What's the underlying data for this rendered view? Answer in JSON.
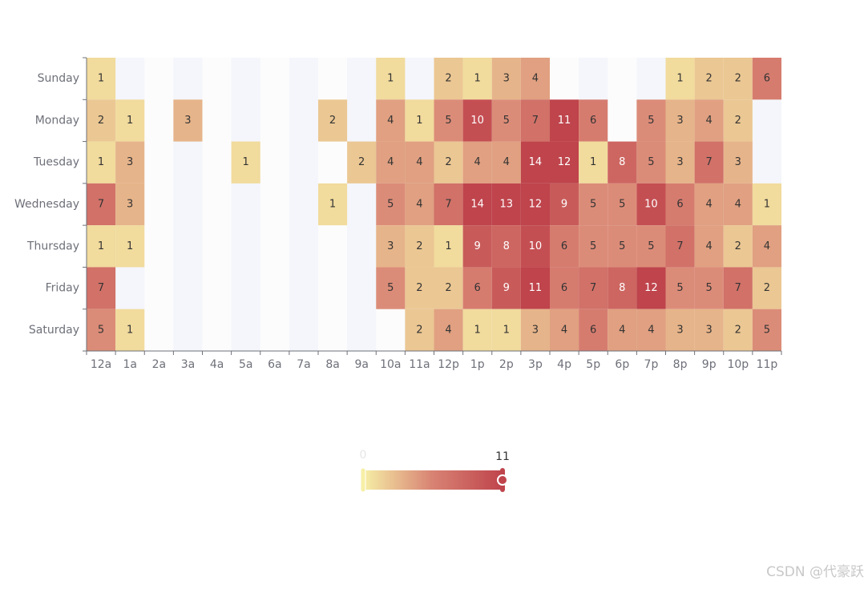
{
  "chart_data": {
    "type": "heatmap",
    "x_categories": [
      "12a",
      "1a",
      "2a",
      "3a",
      "4a",
      "5a",
      "6a",
      "7a",
      "8a",
      "9a",
      "10a",
      "11a",
      "12p",
      "1p",
      "2p",
      "3p",
      "4p",
      "5p",
      "6p",
      "7p",
      "8p",
      "9p",
      "10p",
      "11p"
    ],
    "y_categories": [
      "Sunday",
      "Monday",
      "Tuesday",
      "Wednesday",
      "Thursday",
      "Friday",
      "Saturday"
    ],
    "values": [
      [
        1,
        null,
        null,
        null,
        null,
        null,
        null,
        null,
        null,
        null,
        1,
        null,
        2,
        1,
        3,
        4,
        null,
        null,
        null,
        null,
        1,
        2,
        2,
        6
      ],
      [
        2,
        1,
        null,
        3,
        null,
        null,
        null,
        null,
        2,
        null,
        4,
        1,
        5,
        10,
        5,
        7,
        11,
        6,
        null,
        5,
        3,
        4,
        2,
        null
      ],
      [
        1,
        3,
        null,
        null,
        null,
        1,
        null,
        null,
        null,
        2,
        4,
        4,
        2,
        4,
        4,
        14,
        12,
        1,
        8,
        5,
        3,
        7,
        3,
        null
      ],
      [
        7,
        3,
        null,
        null,
        null,
        null,
        null,
        null,
        1,
        null,
        5,
        4,
        7,
        14,
        13,
        12,
        9,
        5,
        5,
        10,
        6,
        4,
        4,
        1
      ],
      [
        1,
        1,
        null,
        null,
        null,
        null,
        null,
        null,
        null,
        null,
        3,
        2,
        1,
        9,
        8,
        10,
        6,
        5,
        5,
        5,
        7,
        4,
        2,
        4
      ],
      [
        7,
        null,
        null,
        null,
        null,
        null,
        null,
        null,
        null,
        null,
        5,
        2,
        2,
        6,
        9,
        11,
        6,
        7,
        8,
        12,
        5,
        5,
        7,
        2
      ],
      [
        5,
        1,
        null,
        null,
        null,
        null,
        null,
        null,
        null,
        null,
        null,
        2,
        4,
        1,
        1,
        3,
        4,
        6,
        4,
        4,
        3,
        3,
        2,
        5
      ]
    ],
    "visual_map": {
      "min": 0,
      "max": 11,
      "colors": [
        "#f6efa6",
        "#d88273",
        "#bf444c"
      ]
    }
  },
  "watermark": "CSDN @代豪跃"
}
